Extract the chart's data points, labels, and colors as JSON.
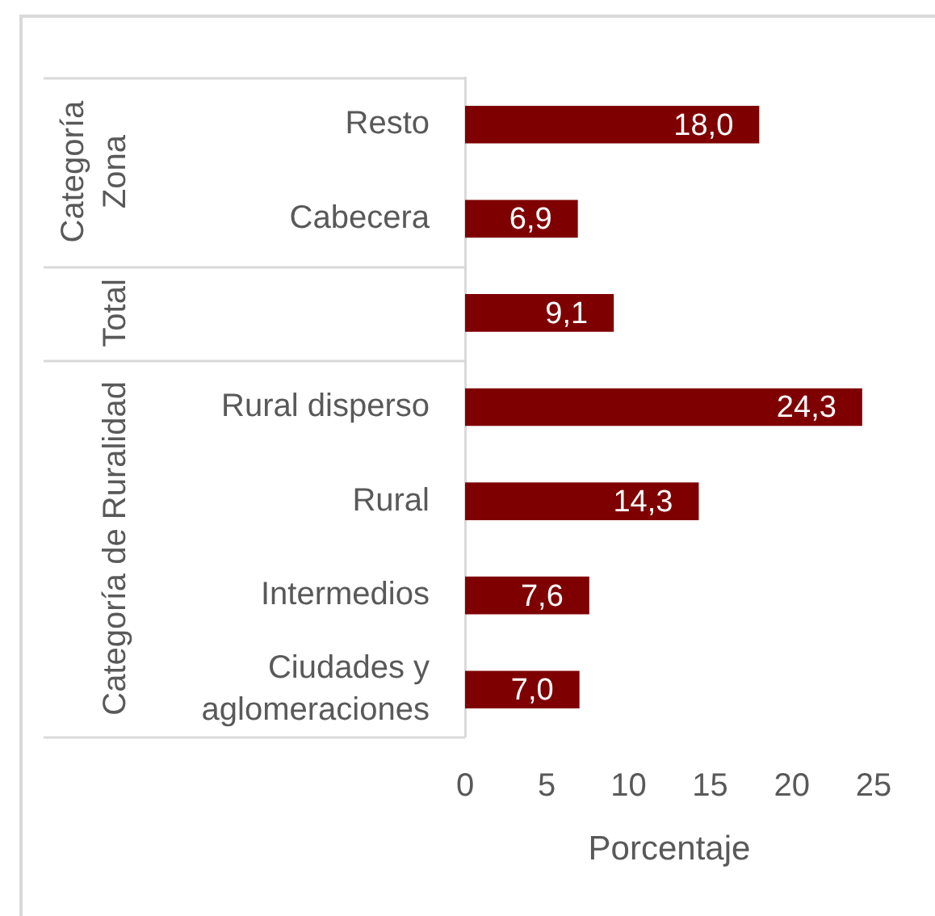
{
  "chart_data": {
    "type": "bar",
    "orientation": "horizontal",
    "xlabel": "Porcentaje",
    "categories": [
      "Resto",
      "Cabecera",
      null,
      "Rural disperso",
      "Rural",
      "Intermedios",
      "Ciudades y aglomeraciones"
    ],
    "values": [
      18.0,
      6.9,
      9.1,
      24.3,
      14.3,
      7.6,
      7.0
    ],
    "value_labels": [
      "18,0",
      "6,9",
      "9,1",
      "24,3",
      "14,3",
      "7,6",
      "7,0"
    ],
    "color": "#7f0000",
    "xlim": [
      0,
      25
    ],
    "xticks": [
      0,
      5,
      10,
      15,
      20,
      25
    ],
    "annotations": [
      "Categoría Zona",
      "Total",
      "Categoría de Ruralidad"
    ]
  }
}
